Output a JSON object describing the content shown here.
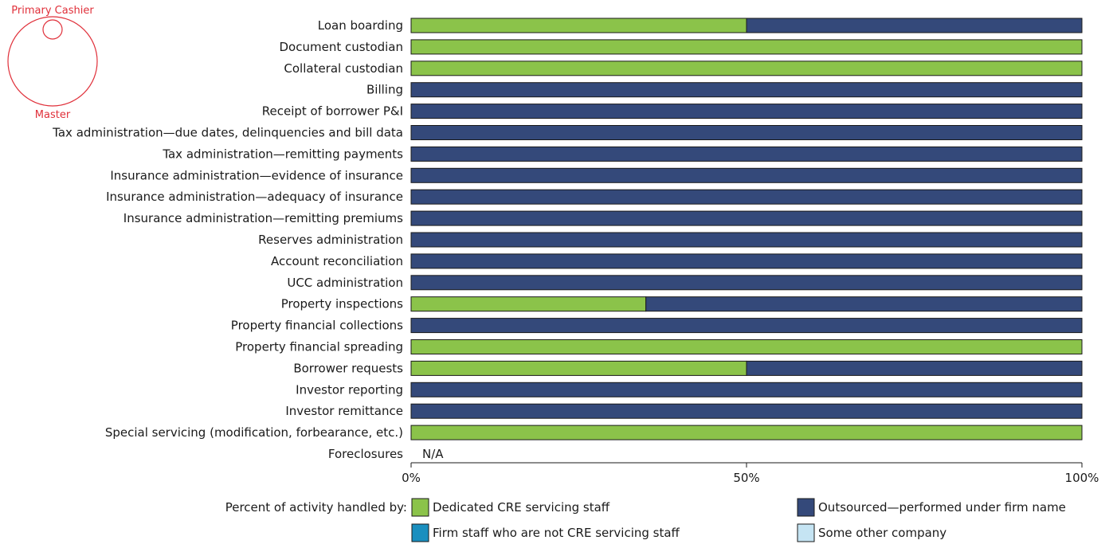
{
  "corner_diagram": {
    "top_label": "Primary Cashier",
    "bottom_label": "Master"
  },
  "chart_data": {
    "type": "bar",
    "orientation": "horizontal",
    "stacked": true,
    "xlim": [
      0,
      100
    ],
    "x_ticks": [
      "0%",
      "50%",
      "100%"
    ],
    "categories": [
      "Loan boarding",
      "Document custodian",
      "Collateral custodian",
      "Billing",
      "Receipt of borrower P&I",
      "Tax administration—due dates, delinquencies and bill data",
      "Tax administration—remitting payments",
      "Insurance administration—evidence of insurance",
      "Insurance administration—adequacy of insurance",
      "Insurance administration—remitting premiums",
      "Reserves administration",
      "Account reconciliation",
      "UCC administration",
      "Property inspections",
      "Property financial collections",
      "Property financial spreading",
      "Borrower requests",
      "Investor reporting",
      "Investor remittance",
      "Special servicing (modification, forbearance, etc.)",
      "Foreclosures"
    ],
    "series": [
      {
        "name": "Dedicated CRE servicing staff",
        "color": "#8bc34a",
        "values": [
          50,
          100,
          100,
          0,
          0,
          0,
          0,
          0,
          0,
          0,
          0,
          0,
          0,
          35,
          0,
          100,
          50,
          0,
          0,
          100,
          null
        ]
      },
      {
        "name": "Outsourced—performed under firm name",
        "color": "#34497a",
        "values": [
          50,
          0,
          0,
          100,
          100,
          100,
          100,
          100,
          100,
          100,
          100,
          100,
          100,
          65,
          100,
          0,
          50,
          100,
          100,
          0,
          null
        ]
      },
      {
        "name": "Firm staff who are not CRE servicing staff",
        "color": "#1a8fbf",
        "values": [
          0,
          0,
          0,
          0,
          0,
          0,
          0,
          0,
          0,
          0,
          0,
          0,
          0,
          0,
          0,
          0,
          0,
          0,
          0,
          0,
          null
        ]
      },
      {
        "name": "Some other company",
        "color": "#c5e4f3",
        "values": [
          0,
          0,
          0,
          0,
          0,
          0,
          0,
          0,
          0,
          0,
          0,
          0,
          0,
          0,
          0,
          0,
          0,
          0,
          0,
          0,
          null
        ]
      }
    ],
    "annotations": [
      {
        "category": "Foreclosures",
        "text": "N/A"
      }
    ],
    "legend": {
      "title": "Percent of activity handled by:",
      "placement": "bottom"
    }
  }
}
